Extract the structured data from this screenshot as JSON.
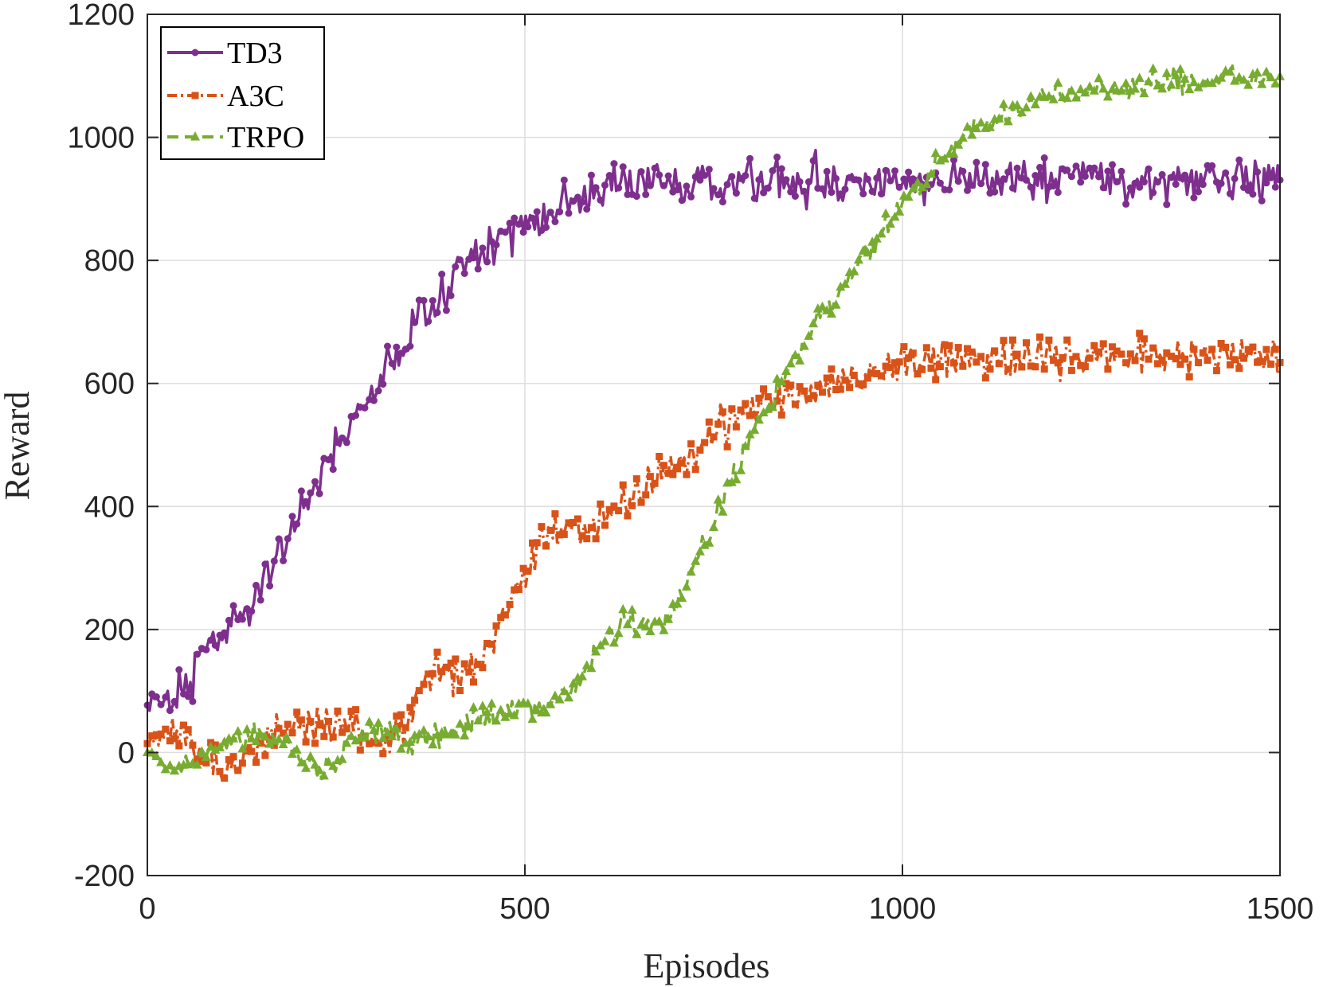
{
  "chart_data": {
    "type": "line",
    "title": "",
    "xlabel": "Episodes",
    "ylabel": "Reward",
    "xlim": [
      0,
      1500
    ],
    "ylim": [
      -200,
      1200
    ],
    "xticks": [
      0,
      500,
      1000,
      1500
    ],
    "yticks": [
      -200,
      0,
      200,
      400,
      600,
      800,
      1000,
      1200
    ],
    "xtick_labels": [
      "0",
      "500",
      "1000",
      "1500"
    ],
    "ytick_labels": [
      "-200",
      "0",
      "200",
      "400",
      "600",
      "800",
      "1000",
      "1200"
    ],
    "grid": true,
    "legend_position": "top-left",
    "series": [
      {
        "name": "TD3",
        "color": "#7E2F8E",
        "marker": "circle",
        "line_style": "solid",
        "points": [
          [
            0,
            85
          ],
          [
            20,
            80
          ],
          [
            40,
            88
          ],
          [
            60,
            120
          ],
          [
            80,
            170
          ],
          [
            100,
            200
          ],
          [
            120,
            230
          ],
          [
            140,
            255
          ],
          [
            160,
            290
          ],
          [
            180,
            330
          ],
          [
            200,
            380
          ],
          [
            220,
            430
          ],
          [
            240,
            470
          ],
          [
            260,
            510
          ],
          [
            280,
            550
          ],
          [
            300,
            590
          ],
          [
            320,
            630
          ],
          [
            340,
            660
          ],
          [
            360,
            700
          ],
          [
            380,
            730
          ],
          [
            400,
            760
          ],
          [
            420,
            790
          ],
          [
            440,
            810
          ],
          [
            460,
            830
          ],
          [
            480,
            850
          ],
          [
            500,
            865
          ],
          [
            520,
            880
          ],
          [
            540,
            890
          ],
          [
            560,
            895
          ],
          [
            580,
            905
          ],
          [
            600,
            912
          ],
          [
            620,
            918
          ],
          [
            640,
            922
          ],
          [
            660,
            922
          ],
          [
            680,
            925
          ],
          [
            700,
            925
          ],
          [
            750,
            925
          ],
          [
            800,
            928
          ],
          [
            850,
            930
          ],
          [
            900,
            930
          ],
          [
            950,
            928
          ],
          [
            1000,
            930
          ],
          [
            1050,
            928
          ],
          [
            1100,
            930
          ],
          [
            1150,
            930
          ],
          [
            1200,
            932
          ],
          [
            1250,
            935
          ],
          [
            1300,
            925
          ],
          [
            1350,
            935
          ],
          [
            1400,
            935
          ],
          [
            1450,
            935
          ],
          [
            1500,
            935
          ]
        ]
      },
      {
        "name": "A3C",
        "color": "#D95319",
        "marker": "square",
        "line_style": "dashdot",
        "points": [
          [
            0,
            10
          ],
          [
            20,
            25
          ],
          [
            40,
            40
          ],
          [
            60,
            20
          ],
          [
            80,
            -10
          ],
          [
            100,
            -25
          ],
          [
            120,
            -20
          ],
          [
            140,
            10
          ],
          [
            160,
            30
          ],
          [
            180,
            40
          ],
          [
            200,
            45
          ],
          [
            220,
            45
          ],
          [
            240,
            45
          ],
          [
            260,
            45
          ],
          [
            280,
            30
          ],
          [
            300,
            15
          ],
          [
            320,
            15
          ],
          [
            340,
            50
          ],
          [
            360,
            100
          ],
          [
            380,
            130
          ],
          [
            400,
            125
          ],
          [
            420,
            125
          ],
          [
            440,
            140
          ],
          [
            460,
            190
          ],
          [
            480,
            240
          ],
          [
            500,
            300
          ],
          [
            520,
            340
          ],
          [
            540,
            355
          ],
          [
            560,
            365
          ],
          [
            580,
            360
          ],
          [
            600,
            375
          ],
          [
            620,
            390
          ],
          [
            640,
            405
          ],
          [
            660,
            430
          ],
          [
            680,
            455
          ],
          [
            700,
            470
          ],
          [
            720,
            490
          ],
          [
            740,
            510
          ],
          [
            760,
            525
          ],
          [
            780,
            545
          ],
          [
            800,
            560
          ],
          [
            820,
            570
          ],
          [
            840,
            580
          ],
          [
            860,
            585
          ],
          [
            880,
            588
          ],
          [
            900,
            595
          ],
          [
            920,
            605
          ],
          [
            940,
            615
          ],
          [
            960,
            625
          ],
          [
            980,
            630
          ],
          [
            1000,
            632
          ],
          [
            1050,
            635
          ],
          [
            1100,
            638
          ],
          [
            1150,
            640
          ],
          [
            1200,
            640
          ],
          [
            1250,
            645
          ],
          [
            1300,
            648
          ],
          [
            1350,
            642
          ],
          [
            1400,
            645
          ],
          [
            1450,
            640
          ],
          [
            1500,
            645
          ]
        ]
      },
      {
        "name": "TRPO",
        "color": "#77AC30",
        "marker": "triangle",
        "line_style": "dashed",
        "points": [
          [
            0,
            5
          ],
          [
            15,
            -15
          ],
          [
            30,
            -35
          ],
          [
            50,
            -30
          ],
          [
            70,
            -10
          ],
          [
            90,
            10
          ],
          [
            110,
            20
          ],
          [
            130,
            30
          ],
          [
            150,
            35
          ],
          [
            170,
            30
          ],
          [
            190,
            15
          ],
          [
            210,
            -10
          ],
          [
            230,
            -30
          ],
          [
            250,
            -15
          ],
          [
            270,
            20
          ],
          [
            290,
            35
          ],
          [
            310,
            40
          ],
          [
            330,
            30
          ],
          [
            350,
            15
          ],
          [
            370,
            20
          ],
          [
            390,
            30
          ],
          [
            410,
            40
          ],
          [
            430,
            50
          ],
          [
            450,
            55
          ],
          [
            470,
            60
          ],
          [
            490,
            70
          ],
          [
            510,
            80
          ],
          [
            530,
            85
          ],
          [
            550,
            95
          ],
          [
            570,
            115
          ],
          [
            590,
            150
          ],
          [
            610,
            185
          ],
          [
            630,
            210
          ],
          [
            650,
            210
          ],
          [
            670,
            210
          ],
          [
            690,
            215
          ],
          [
            710,
            260
          ],
          [
            730,
            320
          ],
          [
            750,
            380
          ],
          [
            770,
            430
          ],
          [
            790,
            490
          ],
          [
            810,
            545
          ],
          [
            830,
            580
          ],
          [
            850,
            620
          ],
          [
            870,
            660
          ],
          [
            890,
            700
          ],
          [
            910,
            735
          ],
          [
            930,
            770
          ],
          [
            950,
            810
          ],
          [
            970,
            840
          ],
          [
            990,
            875
          ],
          [
            1010,
            905
          ],
          [
            1030,
            930
          ],
          [
            1050,
            960
          ],
          [
            1070,
            985
          ],
          [
            1090,
            1010
          ],
          [
            1110,
            1025
          ],
          [
            1130,
            1035
          ],
          [
            1150,
            1045
          ],
          [
            1170,
            1055
          ],
          [
            1190,
            1065
          ],
          [
            1210,
            1070
          ],
          [
            1230,
            1075
          ],
          [
            1250,
            1080
          ],
          [
            1270,
            1082
          ],
          [
            1300,
            1085
          ],
          [
            1350,
            1090
          ],
          [
            1400,
            1090
          ],
          [
            1450,
            1095
          ],
          [
            1500,
            1095
          ]
        ]
      }
    ]
  }
}
